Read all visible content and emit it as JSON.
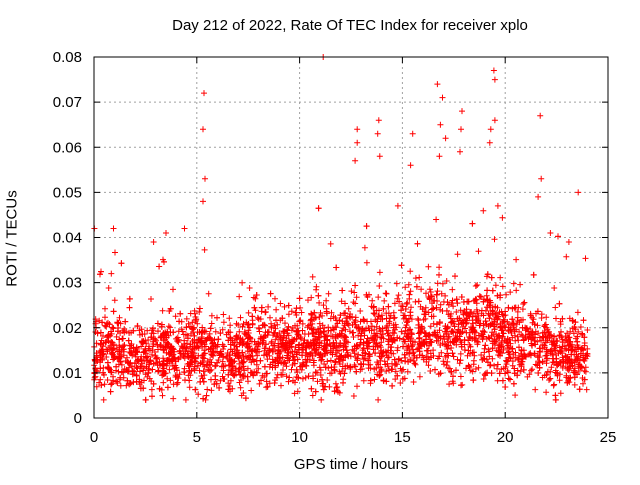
{
  "chart_data": {
    "type": "scatter",
    "title": "Day 212 of 2022, Rate Of TEC Index for receiver xplo",
    "xlabel": "GPS time / hours",
    "ylabel": "ROTI / TECUs",
    "xlim": [
      0,
      25
    ],
    "ylim": [
      0,
      0.08
    ],
    "xticks": [
      0,
      5,
      10,
      15,
      20,
      25
    ],
    "yticks": [
      0,
      0.01,
      0.02,
      0.03,
      0.04,
      0.05,
      0.06,
      0.07,
      0.08
    ],
    "xtick_labels": [
      "0",
      "5",
      "10",
      "15",
      "20",
      "25"
    ],
    "ytick_labels": [
      "0",
      "0.01",
      "0.02",
      "0.03",
      "0.04",
      "0.05",
      "0.06",
      "0.07",
      "0.08"
    ],
    "grid": true,
    "marker": "+",
    "point_color": "#ff0000",
    "x_data_range": [
      0,
      24
    ],
    "profile": {
      "hours": [
        0,
        1,
        2,
        3,
        4,
        5,
        6,
        7,
        8,
        9,
        10,
        11,
        12,
        13,
        14,
        15,
        16,
        17,
        18,
        19,
        20,
        21,
        22,
        23,
        24
      ],
      "median": [
        0.014,
        0.015,
        0.014,
        0.014,
        0.014,
        0.015,
        0.014,
        0.014,
        0.015,
        0.015,
        0.016,
        0.016,
        0.016,
        0.017,
        0.017,
        0.018,
        0.019,
        0.019,
        0.019,
        0.019,
        0.018,
        0.017,
        0.015,
        0.014,
        0.014
      ]
    },
    "peaks": [
      {
        "x": 0.02,
        "y": 0.042
      },
      {
        "x": 0.95,
        "y": 0.042
      },
      {
        "x": 2.9,
        "y": 0.039
      },
      {
        "x": 3.5,
        "y": 0.041
      },
      {
        "x": 4.4,
        "y": 0.042
      },
      {
        "x": 5.35,
        "y": 0.072
      },
      {
        "x": 5.3,
        "y": 0.064
      },
      {
        "x": 5.4,
        "y": 0.053
      },
      {
        "x": 5.3,
        "y": 0.048
      },
      {
        "x": 11.15,
        "y": 0.08
      },
      {
        "x": 12.8,
        "y": 0.064
      },
      {
        "x": 12.8,
        "y": 0.061
      },
      {
        "x": 12.7,
        "y": 0.057
      },
      {
        "x": 13.85,
        "y": 0.066
      },
      {
        "x": 13.8,
        "y": 0.063
      },
      {
        "x": 13.9,
        "y": 0.058
      },
      {
        "x": 15.5,
        "y": 0.063
      },
      {
        "x": 15.4,
        "y": 0.056
      },
      {
        "x": 16.7,
        "y": 0.074
      },
      {
        "x": 16.95,
        "y": 0.071
      },
      {
        "x": 16.85,
        "y": 0.065
      },
      {
        "x": 17.1,
        "y": 0.062
      },
      {
        "x": 16.8,
        "y": 0.058
      },
      {
        "x": 17.9,
        "y": 0.068
      },
      {
        "x": 17.85,
        "y": 0.064
      },
      {
        "x": 17.8,
        "y": 0.059
      },
      {
        "x": 19.45,
        "y": 0.077
      },
      {
        "x": 19.5,
        "y": 0.075
      },
      {
        "x": 19.5,
        "y": 0.066
      },
      {
        "x": 19.3,
        "y": 0.064
      },
      {
        "x": 19.25,
        "y": 0.061
      },
      {
        "x": 21.7,
        "y": 0.067
      },
      {
        "x": 21.75,
        "y": 0.053
      },
      {
        "x": 21.6,
        "y": 0.049
      },
      {
        "x": 23.55,
        "y": 0.05
      },
      {
        "x": 22.2,
        "y": 0.041
      },
      {
        "x": 23.1,
        "y": 0.039
      }
    ]
  }
}
